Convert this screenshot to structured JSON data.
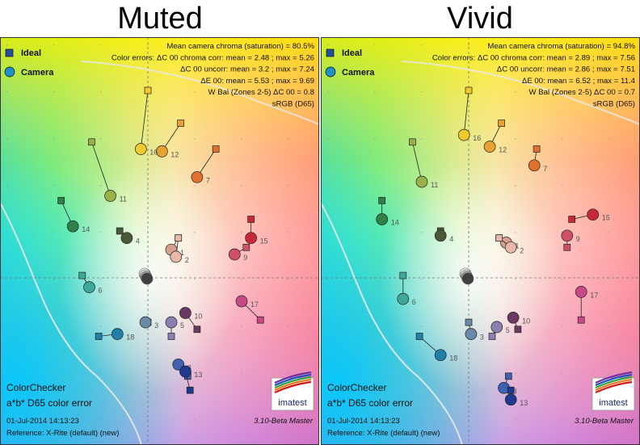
{
  "panels": [
    {
      "title": "Muted",
      "stats": [
        "Mean camera chroma (saturation) = 80.5%",
        "Color errors: ΔC 00 chroma corr:  mean = 2.48 ;  max = 5.26",
        "ΔC 00 uncorr:  mean = 3.2 ;  max = 7.24",
        "ΔE 00:  mean = 5.53 ;  max = 9.69",
        "W Bal (Zones 2-5) ΔC 00 = 0.8",
        "sRGB (D65)"
      ],
      "legend": [
        "Ideal",
        "Camera"
      ],
      "footer": {
        "name": "ColorChecker",
        "subtitle": "a*b* D65 color error",
        "date": "01-Jul-2014 14:13:23",
        "version": "3.10-Beta  Master",
        "reference": "Reference: X-Rite (default) (new)",
        "logo": "imatest"
      }
    },
    {
      "title": "Vivid",
      "stats": [
        "Mean camera chroma (saturation) = 94.8%",
        "Color errors: ΔC 00 chroma corr:  mean = 2.89 ;  max = 7.56",
        "ΔC 00 uncorr:  mean = 2.86 ;  max = 7.51",
        "ΔE 00:  mean = 6.52 ;  max = 11.4",
        "W Bal (Zones 2-5) ΔC 00 = 0.7",
        "sRGB (D65)"
      ],
      "legend": [
        "Ideal",
        "Camera"
      ],
      "footer": {
        "name": "ColorChecker",
        "subtitle": "a*b* D65 color error",
        "date": "01-Jul-2014 14:13:23",
        "version": "3.10-Beta  Master",
        "reference": "Reference: X-Rite (default) (new)",
        "logo": "imatest"
      }
    }
  ],
  "chart_data": [
    {
      "type": "scatter",
      "title": "Muted",
      "x_axis": "a*",
      "y_axis": "b*",
      "xlim": [
        -60,
        70
      ],
      "ylim": [
        -60,
        90
      ],
      "patches": [
        {
          "id": "1",
          "ideal": [
            13,
            17
          ],
          "camera": [
            10,
            12
          ],
          "color": "#d8a090"
        },
        {
          "id": "2",
          "ideal": [
            13,
            17
          ],
          "camera": [
            12,
            9
          ],
          "color": "#e8b8a8"
        },
        {
          "id": "3",
          "ideal": [
            0,
            -19
          ],
          "camera": [
            -1,
            -19
          ],
          "color": "#6a8aa8"
        },
        {
          "id": "4",
          "ideal": [
            -12,
            20
          ],
          "camera": [
            -9,
            17
          ],
          "color": "#4a5a38"
        },
        {
          "id": "5",
          "ideal": [
            10,
            -25
          ],
          "camera": [
            10,
            -19
          ],
          "color": "#8a80b0"
        },
        {
          "id": "6",
          "ideal": [
            -28,
            1
          ],
          "camera": [
            -25,
            -4
          ],
          "color": "#40a898"
        },
        {
          "id": "7",
          "ideal": [
            29,
            55
          ],
          "camera": [
            21,
            43
          ],
          "color": "#e07030"
        },
        {
          "id": "8",
          "ideal": [
            17,
            -42
          ],
          "camera": [
            13,
            -37
          ],
          "color": "#4060b0"
        },
        {
          "id": "9",
          "ideal": [
            42,
            13
          ],
          "camera": [
            37,
            10
          ],
          "color": "#d05068"
        },
        {
          "id": "10",
          "ideal": [
            21,
            -22
          ],
          "camera": [
            16,
            -15
          ],
          "color": "#6a3860"
        },
        {
          "id": "11",
          "ideal": [
            -24,
            58
          ],
          "camera": [
            -16,
            35
          ],
          "color": "#9ab048"
        },
        {
          "id": "12",
          "ideal": [
            14,
            66
          ],
          "camera": [
            6,
            54
          ],
          "color": "#e8a030"
        },
        {
          "id": "13",
          "ideal": [
            18,
            -48
          ],
          "camera": [
            16,
            -40
          ],
          "color": "#203890"
        },
        {
          "id": "14",
          "ideal": [
            -37,
            33
          ],
          "camera": [
            -32,
            22
          ],
          "color": "#30804a"
        },
        {
          "id": "15",
          "ideal": [
            44,
            25
          ],
          "camera": [
            44,
            17
          ],
          "color": "#c82838"
        },
        {
          "id": "16",
          "ideal": [
            0,
            80
          ],
          "camera": [
            -3,
            55
          ],
          "color": "#f0c830"
        },
        {
          "id": "17",
          "ideal": [
            48,
            -18
          ],
          "camera": [
            40,
            -10
          ],
          "color": "#c84888"
        },
        {
          "id": "18",
          "ideal": [
            -21,
            -25
          ],
          "camera": [
            -13,
            -24
          ],
          "color": "#2080a8"
        }
      ]
    },
    {
      "type": "scatter",
      "title": "Vivid",
      "x_axis": "a*",
      "y_axis": "b*",
      "xlim": [
        -60,
        70
      ],
      "ylim": [
        -60,
        90
      ],
      "patches": [
        {
          "id": "1",
          "ideal": [
            13,
            17
          ],
          "camera": [
            16,
            15
          ],
          "color": "#d8a090"
        },
        {
          "id": "2",
          "ideal": [
            13,
            17
          ],
          "camera": [
            18,
            13
          ],
          "color": "#e8b8a8"
        },
        {
          "id": "3",
          "ideal": [
            0,
            -19
          ],
          "camera": [
            1,
            -24
          ],
          "color": "#6a8aa8"
        },
        {
          "id": "4",
          "ideal": [
            -12,
            20
          ],
          "camera": [
            -12,
            18
          ],
          "color": "#4a5a38"
        },
        {
          "id": "5",
          "ideal": [
            10,
            -25
          ],
          "camera": [
            12,
            -21
          ],
          "color": "#8a80b0"
        },
        {
          "id": "6",
          "ideal": [
            -28,
            1
          ],
          "camera": [
            -28,
            -9
          ],
          "color": "#40a898"
        },
        {
          "id": "7",
          "ideal": [
            29,
            55
          ],
          "camera": [
            28,
            48
          ],
          "color": "#e07030"
        },
        {
          "id": "8",
          "ideal": [
            17,
            -42
          ],
          "camera": [
            15,
            -47
          ],
          "color": "#4060b0"
        },
        {
          "id": "9",
          "ideal": [
            42,
            13
          ],
          "camera": [
            42,
            18
          ],
          "color": "#d05068"
        },
        {
          "id": "10",
          "ideal": [
            21,
            -22
          ],
          "camera": [
            19,
            -17
          ],
          "color": "#6a3860"
        },
        {
          "id": "11",
          "ideal": [
            -24,
            58
          ],
          "camera": [
            -20,
            41
          ],
          "color": "#9ab048"
        },
        {
          "id": "12",
          "ideal": [
            14,
            66
          ],
          "camera": [
            9,
            56
          ],
          "color": "#e8a030"
        },
        {
          "id": "13",
          "ideal": [
            18,
            -48
          ],
          "camera": [
            18,
            -52
          ],
          "color": "#203890"
        },
        {
          "id": "14",
          "ideal": [
            -37,
            33
          ],
          "camera": [
            -37,
            25
          ],
          "color": "#30804a"
        },
        {
          "id": "15",
          "ideal": [
            44,
            25
          ],
          "camera": [
            53,
            27
          ],
          "color": "#c82838"
        },
        {
          "id": "16",
          "ideal": [
            0,
            80
          ],
          "camera": [
            -2,
            61
          ],
          "color": "#f0c830"
        },
        {
          "id": "17",
          "ideal": [
            48,
            -18
          ],
          "camera": [
            48,
            -6
          ],
          "color": "#c84888"
        },
        {
          "id": "18",
          "ideal": [
            -21,
            -25
          ],
          "camera": [
            -12,
            -33
          ],
          "color": "#2080a8"
        }
      ]
    }
  ]
}
